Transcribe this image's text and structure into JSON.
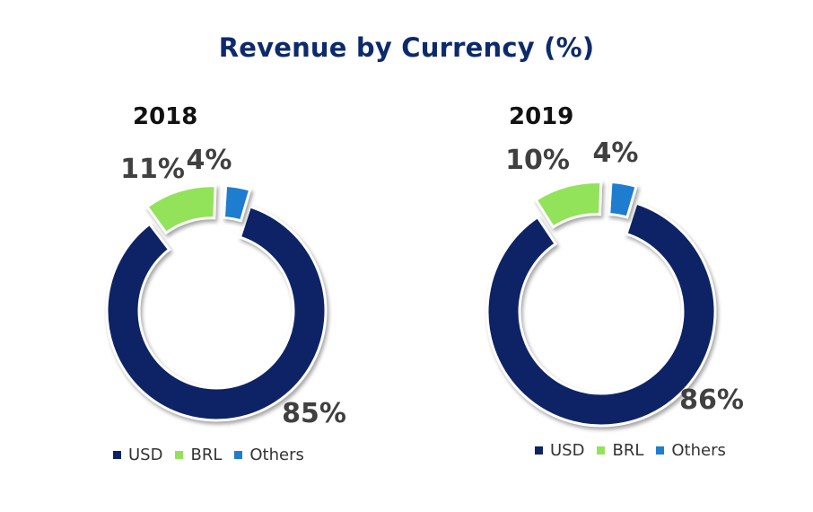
{
  "title": "Revenue by Currency (%)",
  "colors": {
    "USD": "#0d2366",
    "BRL": "#92e35a",
    "Others": "#1f7dd0"
  },
  "chart_data": [
    {
      "type": "pie",
      "title": "2018",
      "categories": [
        "USD",
        "BRL",
        "Others"
      ],
      "values": [
        85,
        11,
        4
      ],
      "labels": [
        "85%",
        "11%",
        "4%"
      ],
      "legend": [
        "USD",
        "BRL",
        "Others"
      ]
    },
    {
      "type": "pie",
      "title": "2019",
      "categories": [
        "USD",
        "BRL",
        "Others"
      ],
      "values": [
        86,
        10,
        4
      ],
      "labels": [
        "86%",
        "10%",
        "4%"
      ],
      "legend": [
        "USD",
        "BRL",
        "Others"
      ]
    }
  ]
}
